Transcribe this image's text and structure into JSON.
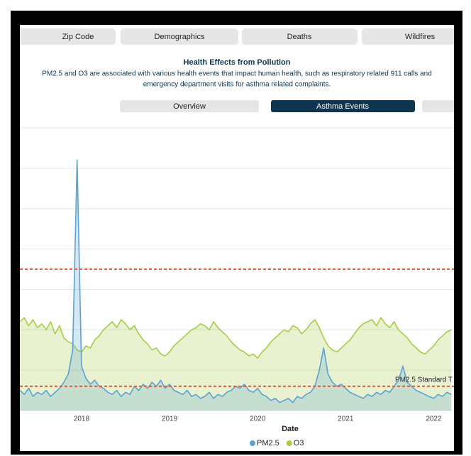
{
  "tabs": [
    "Zip Code",
    "Demographics",
    "Deaths",
    "Wildfires"
  ],
  "header": {
    "title": "Health Effects from Pollution",
    "description": [
      "PM2.5 and O3 are associated with various health events that impact human health, such as respiratory related 911 calls and",
      "emergency department visits for asthma related complaints."
    ]
  },
  "subtabs": {
    "items": [
      "Overview",
      "Asthma Events"
    ],
    "active": 1
  },
  "chart_data": {
    "type": "line",
    "xlabel": "Date",
    "x": [
      2017.3,
      2017.35,
      2017.4,
      2017.45,
      2017.5,
      2017.55,
      2017.6,
      2017.65,
      2017.7,
      2017.75,
      2017.8,
      2017.85,
      2017.9,
      2017.95,
      2018.0,
      2018.05,
      2018.1,
      2018.15,
      2018.2,
      2018.25,
      2018.3,
      2018.35,
      2018.4,
      2018.45,
      2018.5,
      2018.55,
      2018.6,
      2018.65,
      2018.7,
      2018.75,
      2018.8,
      2018.85,
      2018.9,
      2018.95,
      2019.0,
      2019.05,
      2019.1,
      2019.15,
      2019.2,
      2019.25,
      2019.3,
      2019.35,
      2019.4,
      2019.45,
      2019.5,
      2019.55,
      2019.6,
      2019.65,
      2019.7,
      2019.75,
      2019.8,
      2019.85,
      2019.9,
      2019.95,
      2020.0,
      2020.05,
      2020.1,
      2020.15,
      2020.2,
      2020.25,
      2020.3,
      2020.35,
      2020.4,
      2020.45,
      2020.5,
      2020.55,
      2020.6,
      2020.65,
      2020.7,
      2020.75,
      2020.8,
      2020.85,
      2020.9,
      2020.95,
      2021.0,
      2021.05,
      2021.1,
      2021.15,
      2021.2,
      2021.25,
      2021.3,
      2021.35,
      2021.4,
      2021.45,
      2021.5,
      2021.55,
      2021.6,
      2021.65,
      2021.7,
      2021.75,
      2021.8,
      2021.85,
      2021.9,
      2021.95,
      2022.0,
      2022.05,
      2022.1,
      2022.15,
      2022.2
    ],
    "xlim": [
      2017.3,
      2022.23
    ],
    "xticks": [
      2018,
      2019,
      2020,
      2021,
      2022
    ],
    "ylim": [
      0,
      140
    ],
    "yticks": [
      0,
      20,
      40,
      60,
      80,
      100,
      120,
      140
    ],
    "grid": true,
    "series": [
      {
        "name": "O3",
        "color": "#a8cc44",
        "values": [
          44,
          46,
          42,
          45,
          41,
          43,
          40,
          44,
          38,
          42,
          36,
          34,
          33,
          30,
          29,
          32,
          31,
          35,
          37,
          40,
          42,
          44,
          41,
          45,
          43,
          40,
          42,
          38,
          35,
          33,
          30,
          31,
          28,
          27,
          29,
          32,
          34,
          36,
          38,
          40,
          41,
          43,
          42,
          40,
          44,
          41,
          39,
          37,
          34,
          32,
          30,
          29,
          27,
          28,
          26,
          29,
          31,
          34,
          36,
          38,
          40,
          39,
          42,
          41,
          38,
          40,
          43,
          45,
          41,
          36,
          32,
          30,
          29,
          31,
          33,
          35,
          38,
          41,
          43,
          44,
          45,
          42,
          46,
          43,
          41,
          44,
          40,
          38,
          36,
          33,
          31,
          29,
          28,
          30,
          32,
          35,
          37,
          39,
          40
        ]
      },
      {
        "name": "PM2.5",
        "color": "#5ba3d0",
        "values": [
          10,
          8,
          11,
          7,
          9,
          8,
          10,
          7,
          9,
          11,
          14,
          18,
          30,
          124,
          22,
          16,
          13,
          15,
          12,
          11,
          9,
          8,
          10,
          7,
          9,
          8,
          12,
          10,
          13,
          11,
          14,
          12,
          15,
          11,
          13,
          10,
          9,
          8,
          10,
          7,
          8,
          6,
          7,
          9,
          6,
          8,
          7,
          9,
          10,
          12,
          11,
          13,
          10,
          9,
          11,
          8,
          7,
          5,
          6,
          4,
          5,
          6,
          4,
          7,
          6,
          8,
          9,
          12,
          20,
          31,
          18,
          14,
          12,
          13,
          11,
          9,
          8,
          7,
          6,
          8,
          7,
          9,
          8,
          10,
          9,
          12,
          15,
          22,
          14,
          12,
          10,
          9,
          8,
          7,
          6,
          8,
          7,
          9,
          8
        ]
      }
    ],
    "legend_order": [
      1,
      0
    ],
    "reference_lines": [
      {
        "value": 70,
        "color": "#e8583a"
      },
      {
        "value": 12,
        "color": "#e8583a",
        "label": "PM2.5 Standard T"
      }
    ]
  }
}
